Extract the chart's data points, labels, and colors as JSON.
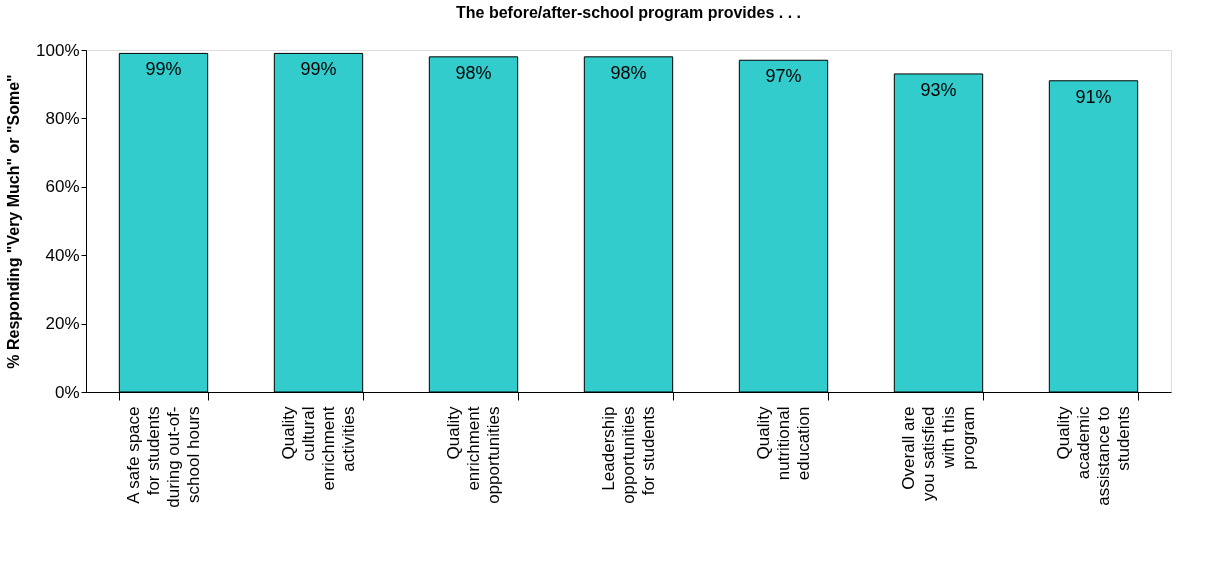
{
  "chart_data": {
    "type": "bar",
    "title": "The before/after-school program provides . . .",
    "ylabel": "% Responding \"Very Much\" or \"Some\"",
    "categories": [
      "A safe space\nfor students\nduring out-of-\nschool hours",
      "Quality\ncultural\nenrichment\nactivities",
      "Quality\nenrichment\nopportunities",
      "Leadership\nopportunities\nfor students",
      "Quality\nnutritional\neducation",
      "Overall are\nyou satisfied\nwith this\nprogram",
      "Quality\nacademic\nassistance to\nstudents"
    ],
    "values": [
      99,
      99,
      98,
      98,
      97,
      93,
      91
    ],
    "value_labels": [
      "99%",
      "99%",
      "98%",
      "98%",
      "97%",
      "93%",
      "91%"
    ],
    "color": "#33cccc",
    "ylim": [
      0,
      100
    ],
    "yticks": [
      {
        "value": 0,
        "label": "0%"
      },
      {
        "value": 20,
        "label": "20%"
      },
      {
        "value": 40,
        "label": "40%"
      },
      {
        "value": 60,
        "label": "60%"
      },
      {
        "value": 80,
        "label": "80%"
      },
      {
        "value": 100,
        "label": "100%"
      }
    ],
    "grid": false
  }
}
